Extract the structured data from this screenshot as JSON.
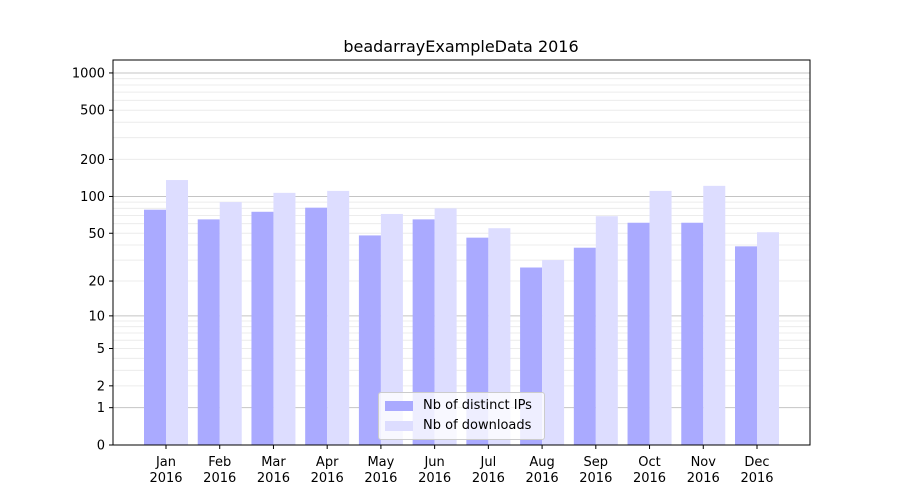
{
  "chart_data": {
    "type": "bar",
    "title": "beadarrayExampleData 2016",
    "xlabel": "",
    "ylabel": "",
    "yscale": "log10(y+1)",
    "ylim": [
      0,
      1270
    ],
    "yticks": [
      0,
      1,
      2,
      5,
      10,
      20,
      50,
      100,
      200,
      500,
      1000
    ],
    "grid": true,
    "legend_position": "lower-center",
    "categories": [
      "Jan\n2016",
      "Feb\n2016",
      "Mar\n2016",
      "Apr\n2016",
      "May\n2016",
      "Jun\n2016",
      "Jul\n2016",
      "Aug\n2016",
      "Sep\n2016",
      "Oct\n2016",
      "Nov\n2016",
      "Dec\n2016"
    ],
    "category_months": [
      "Jan",
      "Feb",
      "Mar",
      "Apr",
      "May",
      "Jun",
      "Jul",
      "Aug",
      "Sep",
      "Oct",
      "Nov",
      "Dec"
    ],
    "category_year": "2016",
    "series": [
      {
        "name": "Nb of distinct IPs",
        "color": "#aaaaff",
        "values": [
          78,
          65,
          75,
          81,
          48,
          65,
          46,
          26,
          38,
          61,
          61,
          39
        ]
      },
      {
        "name": "Nb of downloads",
        "color": "#ddddff",
        "values": [
          136,
          90,
          107,
          111,
          72,
          80,
          55,
          30,
          69,
          111,
          122,
          51
        ]
      }
    ]
  }
}
